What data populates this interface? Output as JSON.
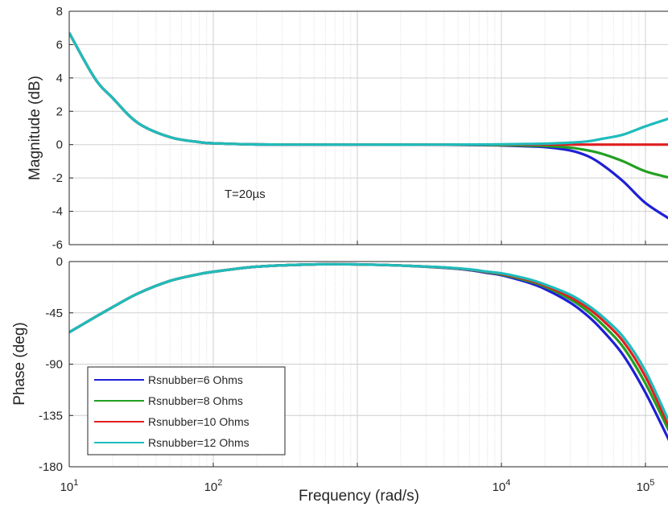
{
  "chart_data": [
    {
      "type": "line",
      "name": "magnitude",
      "xscale": "log",
      "xlim": [
        10,
        150000
      ],
      "ylim": [
        -6,
        8
      ],
      "yticks": [
        "8",
        "6",
        "4",
        "2",
        "0",
        "-2",
        "-4",
        "-6"
      ],
      "ylabel": "Magnitude (dB)",
      "grid": true,
      "annotation": "T=20µs",
      "x": [
        10,
        15,
        20,
        30,
        50,
        80,
        100,
        200,
        500,
        1000,
        3000,
        8000,
        10000,
        15000,
        20000,
        30000,
        40000,
        50000,
        70000,
        100000,
        150000
      ],
      "series": [
        {
          "name": "Rsnubber=6 Ohms",
          "color": "#1f1fd6",
          "values": [
            6.7,
            4.0,
            2.8,
            1.3,
            0.45,
            0.15,
            0.08,
            0.01,
            0,
            0,
            0,
            -0.03,
            -0.05,
            -0.1,
            -0.15,
            -0.35,
            -0.7,
            -1.2,
            -2.2,
            -3.5,
            -4.5
          ]
        },
        {
          "name": "Rsnubber=8 Ohms",
          "color": "#22a022",
          "values": [
            6.7,
            4.0,
            2.8,
            1.3,
            0.45,
            0.15,
            0.08,
            0.01,
            0,
            0,
            0,
            -0.02,
            -0.03,
            -0.06,
            -0.08,
            -0.18,
            -0.35,
            -0.55,
            -1.0,
            -1.6,
            -2.0
          ]
        },
        {
          "name": "Rsnubber=10 Ohms",
          "color": "#e01f1f",
          "values": [
            6.7,
            4.0,
            2.8,
            1.3,
            0.45,
            0.15,
            0.08,
            0.01,
            0,
            0,
            0,
            0,
            0,
            0,
            0,
            0,
            0,
            0,
            0,
            0,
            0
          ]
        },
        {
          "name": "Rsnubber=12 Ohms",
          "color": "#1fbcbc",
          "values": [
            6.7,
            4.0,
            2.8,
            1.3,
            0.45,
            0.15,
            0.08,
            0.01,
            0,
            0,
            0,
            0.01,
            0.02,
            0.04,
            0.06,
            0.12,
            0.2,
            0.35,
            0.6,
            1.1,
            1.6
          ]
        }
      ]
    },
    {
      "type": "line",
      "name": "phase",
      "xscale": "log",
      "xlim": [
        10,
        150000
      ],
      "ylim": [
        -180,
        0
      ],
      "yticks": [
        "0",
        "-45",
        "-90",
        "-135",
        "-180"
      ],
      "xticks": [
        {
          "base": "10",
          "exp": "1"
        },
        {
          "base": "10",
          "exp": "2"
        },
        {
          "base": "10",
          "exp": "4"
        },
        {
          "base": "10",
          "exp": "5"
        }
      ],
      "xlabel": "Frequency (rad/s)",
      "ylabel": "Phase (deg)",
      "grid": true,
      "legend_position": "bottom-left",
      "x": [
        10,
        15,
        20,
        30,
        50,
        80,
        100,
        200,
        500,
        1000,
        2000,
        4000,
        6000,
        8000,
        10000,
        15000,
        20000,
        30000,
        40000,
        50000,
        70000,
        100000,
        150000
      ],
      "series": [
        {
          "name": "Rsnubber=6 Ohms",
          "color": "#1f1fd6",
          "values": [
            -62,
            -49,
            -40,
            -28,
            -17,
            -11,
            -9,
            -4.5,
            -2.5,
            -2.5,
            -3.5,
            -5.5,
            -7.5,
            -10,
            -12,
            -18,
            -24,
            -36,
            -48,
            -60,
            -82,
            -115,
            -160
          ]
        },
        {
          "name": "Rsnubber=8 Ohms",
          "color": "#22a022",
          "values": [
            -62,
            -49,
            -40,
            -28,
            -17,
            -11,
            -9,
            -4.5,
            -2.5,
            -2.5,
            -3.5,
            -5.3,
            -7.2,
            -9.5,
            -11.3,
            -16.7,
            -22,
            -33,
            -44,
            -55,
            -75,
            -107,
            -152
          ]
        },
        {
          "name": "Rsnubber=10 Ohms",
          "color": "#e01f1f",
          "values": [
            -62,
            -49,
            -40,
            -28,
            -17,
            -11,
            -9,
            -4.5,
            -2.5,
            -2.5,
            -3.5,
            -5.2,
            -7,
            -9.2,
            -10.8,
            -15.8,
            -21,
            -31,
            -41,
            -51,
            -70,
            -101,
            -148
          ]
        },
        {
          "name": "Rsnubber=12 Ohms",
          "color": "#1fbcbc",
          "values": [
            -62,
            -49,
            -40,
            -28,
            -17,
            -11,
            -9,
            -4.5,
            -2.5,
            -2.5,
            -3.5,
            -5.1,
            -6.8,
            -8.9,
            -10.3,
            -15,
            -20,
            -29,
            -38.5,
            -48,
            -66,
            -96,
            -144
          ]
        }
      ]
    }
  ]
}
